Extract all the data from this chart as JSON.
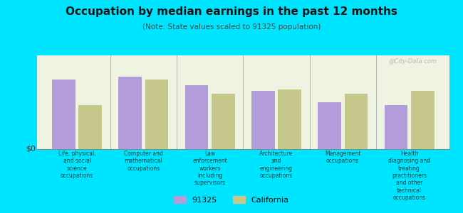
{
  "title": "Occupation by median earnings in the past 12 months",
  "subtitle": "(Note: State values scaled to 91325 population)",
  "categories": [
    "Life, physical,\nand social\nscience\noccupations",
    "Computer and\nmathematical\noccupations",
    "Law\nenforcement\nworkers\nincluding\nsupervisors",
    "Architecture\nand\nengineering\noccupations",
    "Management\noccupations",
    "Health\ndiagnosing and\ntreating\npractitioners\nand other\ntechnical\noccupations"
  ],
  "values_91325": [
    0.82,
    0.85,
    0.75,
    0.68,
    0.55,
    0.52
  ],
  "values_california": [
    0.52,
    0.82,
    0.65,
    0.7,
    0.65,
    0.68
  ],
  "bar_color_91325": "#b39ddb",
  "bar_color_california": "#c5c88a",
  "chart_bg": "#eef3e2",
  "outer_background": "#00e5ff",
  "ylabel": "$0",
  "legend_91325": "91325",
  "legend_california": "California",
  "watermark": "@City-Data.com"
}
